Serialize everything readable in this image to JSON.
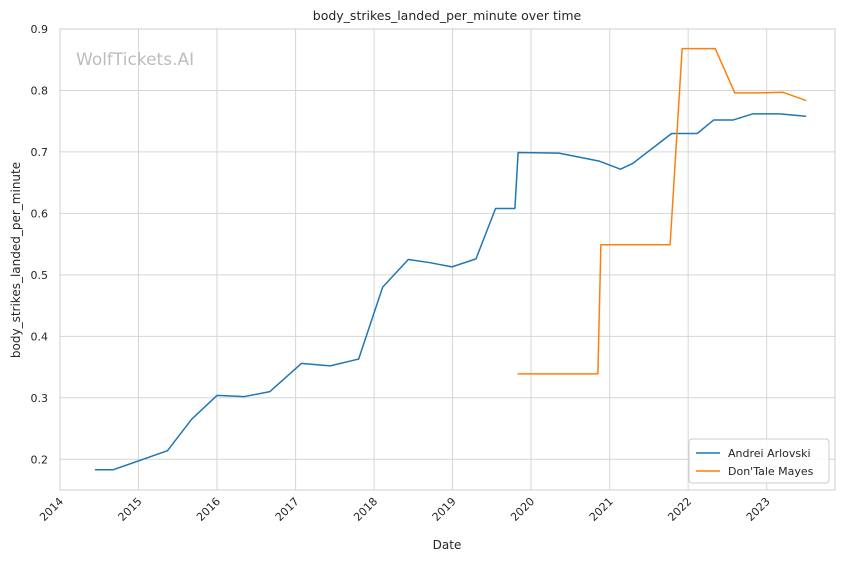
{
  "watermark": "WolfTickets.AI",
  "chart_data": {
    "type": "line",
    "title": "body_strikes_landed_per_minute over time",
    "xlabel": "Date",
    "ylabel": "body_strikes_landed_per_minute",
    "x_type": "date",
    "xlim": [
      "2014-01-01",
      "2023-11-15"
    ],
    "ylim": [
      0.15,
      0.9
    ],
    "x_ticks": [
      "2014",
      "2015",
      "2016",
      "2017",
      "2018",
      "2019",
      "2020",
      "2021",
      "2022",
      "2023"
    ],
    "y_ticks": [
      0.2,
      0.3,
      0.4,
      0.5,
      0.6,
      0.7,
      0.8,
      0.9
    ],
    "grid": true,
    "legend_position": "lower-right",
    "series": [
      {
        "name": "Andrei Arlovski",
        "color": "#1f77b4",
        "points": [
          [
            "2014-06-15",
            0.183
          ],
          [
            "2014-09-06",
            0.183
          ],
          [
            "2015-05-16",
            0.214
          ],
          [
            "2015-09-05",
            0.265
          ],
          [
            "2016-01-02",
            0.304
          ],
          [
            "2016-05-08",
            0.302
          ],
          [
            "2016-09-03",
            0.31
          ],
          [
            "2017-01-28",
            0.356
          ],
          [
            "2017-06-11",
            0.352
          ],
          [
            "2017-10-21",
            0.363
          ],
          [
            "2018-02-10",
            0.48
          ],
          [
            "2018-06-09",
            0.525
          ],
          [
            "2018-09-15",
            0.52
          ],
          [
            "2018-12-29",
            0.513
          ],
          [
            "2019-04-20",
            0.526
          ],
          [
            "2019-07-20",
            0.608
          ],
          [
            "2019-10-18",
            0.608
          ],
          [
            "2019-11-02",
            0.699
          ],
          [
            "2020-05-09",
            0.698
          ],
          [
            "2020-11-14",
            0.685
          ],
          [
            "2021-02-20",
            0.672
          ],
          [
            "2021-04-17",
            0.681
          ],
          [
            "2021-10-16",
            0.73
          ],
          [
            "2022-02-12",
            0.73
          ],
          [
            "2022-04-30",
            0.752
          ],
          [
            "2022-07-30",
            0.752
          ],
          [
            "2022-10-29",
            0.762
          ],
          [
            "2023-03-04",
            0.762
          ],
          [
            "2023-07-01",
            0.758
          ]
        ]
      },
      {
        "name": "Don'Tale Mayes",
        "color": "#ff7f0e",
        "points": [
          [
            "2019-11-02",
            0.339
          ],
          [
            "2020-11-07",
            0.339
          ],
          [
            "2020-11-21",
            0.549
          ],
          [
            "2021-10-09",
            0.549
          ],
          [
            "2021-12-04",
            0.868
          ],
          [
            "2022-05-07",
            0.868
          ],
          [
            "2022-08-06",
            0.796
          ],
          [
            "2022-11-19",
            0.796
          ],
          [
            "2023-03-18",
            0.797
          ],
          [
            "2023-07-01",
            0.784
          ]
        ]
      }
    ]
  }
}
